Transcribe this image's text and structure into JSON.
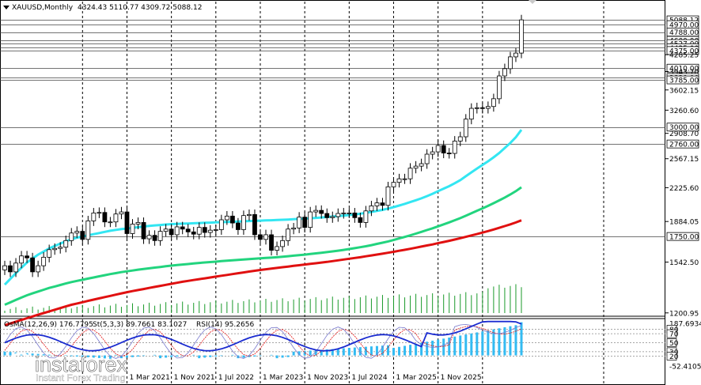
{
  "header": {
    "symbol": "XAUUSD,Monthly",
    "ohlc": "4324.43 5110.77 4309.72 5088.12"
  },
  "indicator_header": {
    "osma": "OsMA(12,26,9) 176.7795",
    "stoch": "St(5,3,3) 89.7661 83.1027",
    "rsi": "RSI(14) 95.2656"
  },
  "watermark": {
    "brand": "instaforex",
    "tagline": "Instant Forex Trading"
  },
  "colors": {
    "bull": "#ffffff",
    "bear": "#000000",
    "candle_outline": "#000000",
    "ma_fast": "#33e6f2",
    "ma_mid": "#22d47e",
    "ma_slow": "#e01010",
    "volume": "#1a9a2a",
    "osma": "#33bbf2",
    "stoch_main": "#1a2bd0",
    "stoch_signal": "#e01010",
    "rsi": "#1a2bd0",
    "grid": "#000000"
  },
  "chart_data": [
    {
      "type": "candlestick",
      "title": "XAUUSD,Monthly",
      "x_tick_labels": [
        "1 Mar 2021",
        "1 Nov 2021",
        "1 Jul 2022",
        "1 Mar 2023",
        "1 Nov 2023",
        "1 Jul 2024",
        "1 Mar 2025",
        "1 Nov 2025"
      ],
      "ylim": [
        1200,
        5150
      ],
      "y_tick_labels": [
        "5088.12",
        "4970.00",
        "4788.00",
        "4600.00",
        "4527.00",
        "4435.00",
        "4375.00",
        "4285.25",
        "4010.00",
        "3943.70",
        "3830.00",
        "3785.00",
        "3602.15",
        "3260.60",
        "3000.00",
        "2908.70",
        "2760.00",
        "2567.15",
        "2225.60",
        "1884.05",
        "1750.00",
        "1542.50",
        "1200.95"
      ],
      "level_lines": [
        5088.12,
        4970,
        4788,
        4600,
        4527,
        4435,
        4375,
        4010,
        3830,
        3785,
        3000,
        2760,
        1750
      ],
      "closes": [
        1515,
        1470,
        1535,
        1590,
        1575,
        1470,
        1515,
        1580,
        1640,
        1650,
        1660,
        1715,
        1780,
        1795,
        1725,
        1890,
        1965,
        1970,
        1880,
        1880,
        1955,
        1975,
        1775,
        1860,
        1875,
        1730,
        1760,
        1715,
        1795,
        1815,
        1765,
        1835,
        1815,
        1790,
        1770,
        1830,
        1785,
        1805,
        1810,
        1900,
        1935,
        1870,
        1810,
        1940,
        1950,
        1765,
        1725,
        1765,
        1635,
        1665,
        1715,
        1815,
        1825,
        1925,
        1830,
        1975,
        1990,
        1960,
        1920,
        1930,
        1960,
        1965,
        1965,
        1920,
        1875,
        1985,
        2035,
        2065,
        2040,
        2235,
        2285,
        2325,
        2325,
        2450,
        2475,
        2505,
        2625,
        2655,
        2740,
        2640,
        2635,
        2800,
        2860,
        3120,
        3290,
        3300,
        3290,
        3320,
        3450,
        3860,
        4000,
        4240,
        4320,
        5088
      ],
      "series": [
        {
          "name": "",
          "values": [
            1380,
            1420,
            1460,
            1500,
            1540,
            1570,
            1600,
            1625,
            1650,
            1670,
            1690,
            1710,
            1725,
            1740,
            1750,
            1760,
            1770,
            1780,
            1790,
            1800,
            1808,
            1815,
            1820,
            1826,
            1832,
            1838,
            1843,
            1848,
            1852,
            1856,
            1860,
            1862,
            1864,
            1866,
            1868,
            1870,
            1872,
            1874,
            1876,
            1878,
            1880,
            1882,
            1884,
            1886,
            1888,
            1890,
            1892,
            1894,
            1896,
            1898,
            1900,
            1902,
            1905,
            1908,
            1911,
            1914,
            1918,
            1922,
            1926,
            1930,
            1935,
            1940,
            1945,
            1950,
            1958,
            1966,
            1975,
            1985,
            1995,
            2008,
            2022,
            2038,
            2055,
            2073,
            2092,
            2112,
            2135,
            2160,
            2188,
            2215,
            2242,
            2275,
            2310,
            2355,
            2400,
            2445,
            2490,
            2535,
            2585,
            2640,
            2705,
            2775,
            2855,
            2960
          ]
        },
        {
          "name": "",
          "values": [
            1250,
            1265,
            1280,
            1295,
            1310,
            1322,
            1334,
            1346,
            1358,
            1368,
            1378,
            1388,
            1398,
            1406,
            1414,
            1422,
            1430,
            1438,
            1446,
            1454,
            1461,
            1468,
            1474,
            1480,
            1486,
            1491,
            1496,
            1501,
            1506,
            1511,
            1516,
            1520,
            1524,
            1528,
            1532,
            1536,
            1540,
            1543,
            1546,
            1550,
            1553,
            1556,
            1559,
            1562,
            1565,
            1568,
            1571,
            1574,
            1577,
            1580,
            1584,
            1588,
            1592,
            1596,
            1600,
            1605,
            1610,
            1615,
            1620,
            1626,
            1632,
            1638,
            1645,
            1652,
            1660,
            1668,
            1677,
            1687,
            1697,
            1708,
            1720,
            1733,
            1746,
            1760,
            1775,
            1790,
            1806,
            1822,
            1840,
            1858,
            1876,
            1896,
            1916,
            1938,
            1962,
            1986,
            2010,
            2035,
            2062,
            2090,
            2120,
            2152,
            2188,
            2230
          ]
        },
        {
          "name": "",
          "values": [
            1130,
            1140,
            1150,
            1160,
            1170,
            1180,
            1190,
            1200,
            1210,
            1220,
            1230,
            1240,
            1250,
            1258,
            1266,
            1274,
            1282,
            1290,
            1298,
            1306,
            1314,
            1322,
            1330,
            1337,
            1344,
            1351,
            1358,
            1365,
            1372,
            1379,
            1386,
            1393,
            1400,
            1406,
            1412,
            1418,
            1424,
            1430,
            1436,
            1442,
            1448,
            1454,
            1460,
            1466,
            1472,
            1478,
            1484,
            1489,
            1494,
            1499,
            1504,
            1509,
            1514,
            1519,
            1524,
            1529,
            1534,
            1539,
            1544,
            1550,
            1556,
            1562,
            1568,
            1574,
            1580,
            1587,
            1594,
            1601,
            1608,
            1615,
            1623,
            1631,
            1639,
            1647,
            1656,
            1665,
            1674,
            1683,
            1693,
            1703,
            1713,
            1724,
            1735,
            1747,
            1759,
            1771,
            1784,
            1797,
            1811,
            1826,
            1842,
            1858,
            1875,
            1895
          ]
        }
      ]
    },
    {
      "type": "bar",
      "title": "OsMA(12,26,9) 176.7795",
      "y_tick_labels": [
        "187.6934",
        "80",
        "70",
        "50",
        "30",
        "20",
        "-52.4105"
      ],
      "ylim": [
        -52.4105,
        187.6934
      ]
    }
  ]
}
